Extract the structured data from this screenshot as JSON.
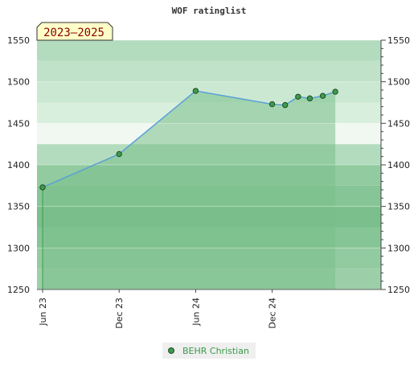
{
  "chart_data": {
    "type": "area",
    "title": "WOF ratinglist",
    "badge": "2023–2025",
    "xlabel": "",
    "ylabel": "",
    "ylim": [
      1250,
      1550
    ],
    "yticks": [
      1250,
      1300,
      1350,
      1400,
      1450,
      1500,
      1550
    ],
    "xlim": [
      "2023-06-01",
      "2025-08-01"
    ],
    "xticks": [
      {
        "date": "2023-06-01",
        "label": "Jun 23"
      },
      {
        "date": "2023-12-01",
        "label": "Dec 23"
      },
      {
        "date": "2024-06-01",
        "label": "Jun 24"
      },
      {
        "date": "2024-12-01",
        "label": "Dec 24"
      }
    ],
    "grid": true,
    "legend_position": "bottom-center",
    "series": [
      {
        "name": "BEHR Christian",
        "x": [
          "2023-06-01",
          "2023-12-01",
          "2024-06-01",
          "2024-12-01",
          "2025-01-01",
          "2025-02-01",
          "2025-03-01",
          "2025-04-01",
          "2025-05-01"
        ],
        "values": [
          1373,
          1413,
          1489,
          1473,
          1472,
          1482,
          1480,
          1483,
          1488
        ]
      }
    ],
    "colors": {
      "area_fill": "#7ac08a",
      "line": "#5a9fd8",
      "marker": "#3e9a4e",
      "legend_bg": "#efefef",
      "badge_bg": "#ffffc8"
    }
  }
}
